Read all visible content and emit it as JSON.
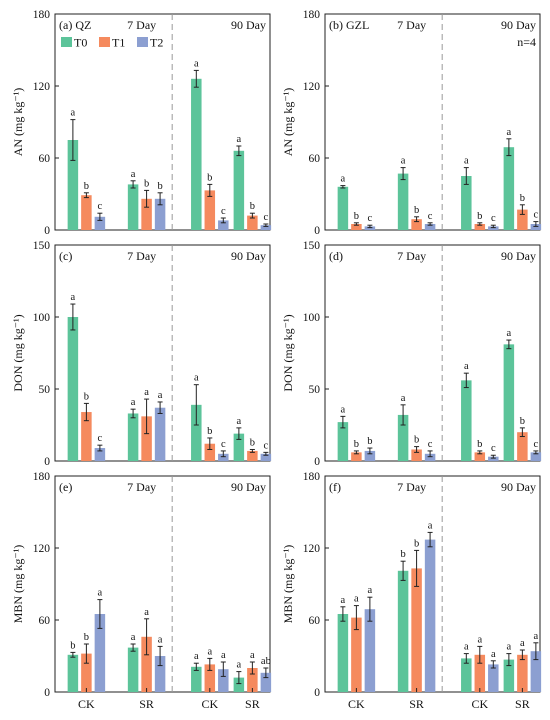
{
  "colors": {
    "T0": "#5CC49A",
    "T1": "#F58A5E",
    "T2": "#8C9FD1",
    "axis": "#222222",
    "divider": "#999999"
  },
  "chart_data": [
    {
      "type": "bar",
      "panel": "(a)",
      "site": "QZ",
      "title": "(a) QZ",
      "period_labels": [
        "7 Day",
        "90 Day"
      ],
      "n_label": "",
      "ylabel": "AN (mg kg⁻¹)",
      "ylim": [
        0,
        180
      ],
      "yticks": [
        0,
        60,
        120,
        180
      ],
      "categories": [
        "CK",
        "SR",
        "CK",
        "SR"
      ],
      "show_xticks": false,
      "legend": "top-left",
      "series": [
        {
          "name": "T0",
          "values": [
            75,
            38,
            126,
            66
          ],
          "errors": [
            17,
            3,
            7,
            4
          ],
          "letters": [
            "a",
            "a",
            "a",
            "a"
          ]
        },
        {
          "name": "T1",
          "values": [
            29,
            26,
            33,
            12
          ],
          "errors": [
            2,
            7,
            5,
            2
          ],
          "letters": [
            "b",
            "b",
            "b",
            "b"
          ]
        },
        {
          "name": "T2",
          "values": [
            11,
            26,
            8,
            4
          ],
          "errors": [
            3,
            5,
            2,
            1
          ],
          "letters": [
            "c",
            "b",
            "c",
            "c"
          ]
        }
      ]
    },
    {
      "type": "bar",
      "panel": "(b)",
      "site": "GZL",
      "title": "(b) GZL",
      "period_labels": [
        "7 Day",
        "90 Day"
      ],
      "n_label": "n=4",
      "ylabel": "AN (mg kg⁻¹)",
      "ylim": [
        0,
        180
      ],
      "yticks": [
        0,
        60,
        120,
        180
      ],
      "categories": [
        "CK",
        "SR",
        "CK",
        "SR"
      ],
      "show_xticks": false,
      "legend": "",
      "series": [
        {
          "name": "T0",
          "values": [
            36,
            47,
            45,
            69
          ],
          "errors": [
            1,
            5,
            7,
            7
          ],
          "letters": [
            "a",
            "a",
            "a",
            "a"
          ]
        },
        {
          "name": "T1",
          "values": [
            5,
            9,
            5,
            17
          ],
          "errors": [
            1,
            2,
            1,
            4
          ],
          "letters": [
            "b",
            "b",
            "b",
            "b"
          ]
        },
        {
          "name": "T2",
          "values": [
            3,
            5,
            3,
            5
          ],
          "errors": [
            1,
            1,
            1,
            2
          ],
          "letters": [
            "c",
            "c",
            "c",
            "c"
          ]
        }
      ]
    },
    {
      "type": "bar",
      "panel": "(c)",
      "site": "",
      "title": "(c)",
      "period_labels": [
        "7 Day",
        "90 Day"
      ],
      "n_label": "",
      "ylabel": "DON (mg kg⁻¹)",
      "ylim": [
        0,
        150
      ],
      "yticks": [
        0,
        50,
        100,
        150
      ],
      "categories": [
        "CK",
        "SR",
        "CK",
        "SR"
      ],
      "show_xticks": false,
      "legend": "",
      "series": [
        {
          "name": "T0",
          "values": [
            100,
            33,
            39,
            19
          ],
          "errors": [
            9,
            3,
            14,
            4
          ],
          "letters": [
            "a",
            "a",
            "a",
            "a"
          ]
        },
        {
          "name": "T1",
          "values": [
            34,
            31,
            12,
            7
          ],
          "errors": [
            6,
            12,
            4,
            1
          ],
          "letters": [
            "b",
            "a",
            "b",
            "b"
          ]
        },
        {
          "name": "T2",
          "values": [
            9,
            37,
            5,
            5
          ],
          "errors": [
            2,
            4,
            2,
            1
          ],
          "letters": [
            "c",
            "a",
            "c",
            "c"
          ]
        }
      ]
    },
    {
      "type": "bar",
      "panel": "(d)",
      "site": "",
      "title": "(d)",
      "period_labels": [
        "7 Day",
        "90 Day"
      ],
      "n_label": "",
      "ylabel": "DON (mg kg⁻¹)",
      "ylim": [
        0,
        150
      ],
      "yticks": [
        0,
        50,
        100,
        150
      ],
      "categories": [
        "CK",
        "SR",
        "CK",
        "SR"
      ],
      "show_xticks": false,
      "legend": "",
      "series": [
        {
          "name": "T0",
          "values": [
            27,
            32,
            56,
            81
          ],
          "errors": [
            4,
            7,
            5,
            3
          ],
          "letters": [
            "a",
            "a",
            "a",
            "a"
          ]
        },
        {
          "name": "T1",
          "values": [
            6,
            8,
            6,
            20
          ],
          "errors": [
            1,
            2,
            1,
            3
          ],
          "letters": [
            "b",
            "b",
            "b",
            "b"
          ]
        },
        {
          "name": "T2",
          "values": [
            7,
            5,
            3,
            6
          ],
          "errors": [
            2,
            2,
            1,
            1
          ],
          "letters": [
            "b",
            "c",
            "c",
            "c"
          ]
        }
      ]
    },
    {
      "type": "bar",
      "panel": "(e)",
      "site": "",
      "title": "(e)",
      "period_labels": [
        "7 Day",
        "90 Day"
      ],
      "n_label": "",
      "ylabel": "MBN (mg kg⁻¹)",
      "ylim": [
        0,
        180
      ],
      "yticks": [
        0,
        60,
        120,
        180
      ],
      "categories": [
        "CK",
        "SR",
        "CK",
        "SR"
      ],
      "show_xticks": true,
      "legend": "",
      "series": [
        {
          "name": "T0",
          "values": [
            31,
            37,
            21,
            12
          ],
          "errors": [
            2,
            3,
            3,
            5
          ],
          "letters": [
            "b",
            "a",
            "a",
            "a"
          ]
        },
        {
          "name": "T1",
          "values": [
            32,
            46,
            23,
            20
          ],
          "errors": [
            8,
            15,
            5,
            5
          ],
          "letters": [
            "b",
            "a",
            "a",
            "a"
          ]
        },
        {
          "name": "T2",
          "values": [
            65,
            30,
            19,
            16
          ],
          "errors": [
            12,
            8,
            6,
            4
          ],
          "letters": [
            "a",
            "a",
            "a",
            "ab"
          ]
        }
      ]
    },
    {
      "type": "bar",
      "panel": "(f)",
      "site": "",
      "title": "(f)",
      "period_labels": [
        "7 Day",
        "90 Day"
      ],
      "n_label": "",
      "ylabel": "MBN (mg kg⁻¹)",
      "ylim": [
        0,
        180
      ],
      "yticks": [
        0,
        60,
        120,
        180
      ],
      "categories": [
        "CK",
        "SR",
        "CK",
        "SR"
      ],
      "show_xticks": true,
      "legend": "",
      "series": [
        {
          "name": "T0",
          "values": [
            65,
            101,
            28,
            27
          ],
          "errors": [
            6,
            8,
            4,
            5
          ],
          "letters": [
            "a",
            "b",
            "a",
            "a"
          ]
        },
        {
          "name": "T1",
          "values": [
            62,
            103,
            31,
            31
          ],
          "errors": [
            10,
            15,
            7,
            4
          ],
          "letters": [
            "a",
            "b",
            "a",
            "a"
          ]
        },
        {
          "name": "T2",
          "values": [
            69,
            127,
            23,
            34
          ],
          "errors": [
            10,
            6,
            3,
            7
          ],
          "letters": [
            "a",
            "a",
            "a",
            "a"
          ]
        }
      ]
    }
  ]
}
